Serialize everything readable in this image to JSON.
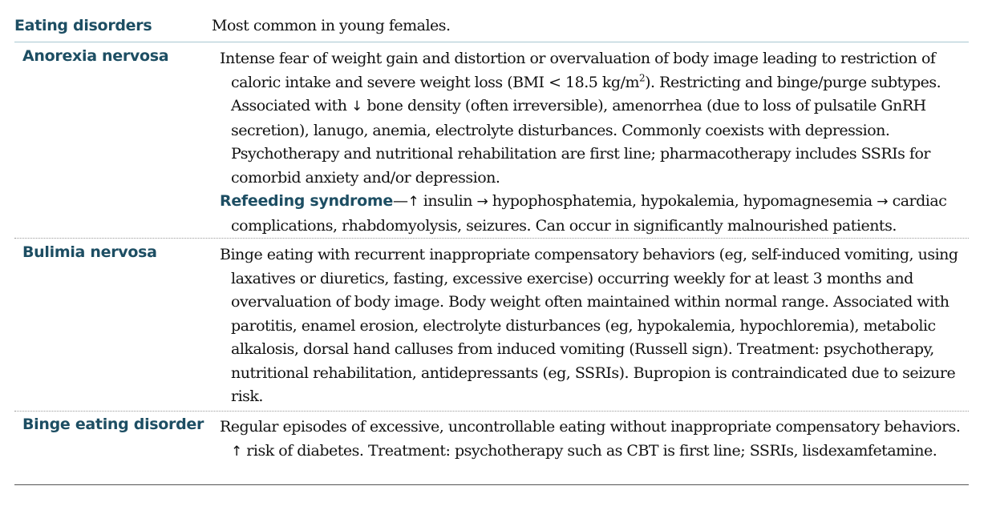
{
  "header": {
    "term": "Eating disorders",
    "description": "Most common in young females."
  },
  "rows": [
    {
      "term": "Anorexia nervosa",
      "p1_a": "Intense fear of weight gain and distortion or overvaluation of body image leading to restriction of caloric intake and severe weight loss (BMI < 18.5 kg/m",
      "p1_sup": "2",
      "p1_b": "). Restricting and binge/purge subtypes. Associated with ",
      "p1_arrow": "↓",
      "p1_c": " bone density (often irreversible), amenorrhea (due to loss of pulsatile GnRH secretion), lanugo, anemia, electrolyte disturbances. Commonly coexists with depression. Psychotherapy and nutritional rehabilitation are first line; pharmacotherapy includes SSRIs for comorbid anxiety and/or depression.",
      "p2_term": "Refeeding syndrome",
      "p2_dash": "—",
      "p2_arrow1": "↑",
      "p2_a": " insulin ",
      "p2_arrow2": "→",
      "p2_b": " hypophosphatemia, hypokalemia, hypomagnesemia ",
      "p2_arrow3": "→",
      "p2_c": " cardiac complications, rhabdomyolysis, seizures. Can occur in significantly malnourished patients."
    },
    {
      "term": "Bulimia nervosa",
      "p1_a": "Binge eating with recurrent inappropriate compensatory behaviors (eg, self-induced vomiting, using laxatives or diuretics, fasting, excessive exercise) occurring weekly for at least 3 months and overvaluation of body image. Body weight often maintained within normal range. Associated with parotitis, enamel erosion, electrolyte disturbances (eg, hypokalemia, hypochloremia), metabolic alkalosis, dorsal hand calluses from induced vomiting (Russell sign). Treatment: psychotherapy, nutritional rehabilitation, antidepressants (eg, SSRIs). Bupropion is contraindicated due to seizure risk."
    },
    {
      "term": "Binge eating disorder",
      "p1_a": "Regular episodes of excessive, uncontrollable eating without inappropriate compensatory behaviors. ",
      "p1_arrow": "↑",
      "p1_b": " risk of diabetes. Treatment: psychotherapy such as CBT is first line; SSRIs, lisdexamfetamine."
    }
  ]
}
